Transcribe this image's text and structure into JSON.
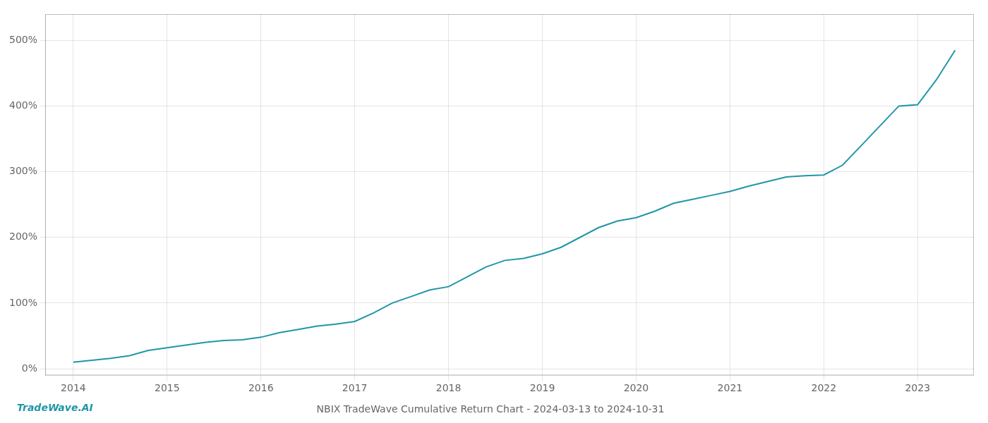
{
  "chart_data": {
    "type": "line",
    "title": "NBIX TradeWave Cumulative Return Chart - 2024-03-13 to 2024-10-31",
    "annotations": [
      "TradeWave.AI"
    ],
    "color": "#2196a8",
    "x": [
      2014.0,
      2014.2,
      2014.4,
      2014.6,
      2014.8,
      2015.0,
      2015.2,
      2015.4,
      2015.6,
      2015.8,
      2016.0,
      2016.2,
      2016.4,
      2016.6,
      2016.8,
      2017.0,
      2017.2,
      2017.4,
      2017.6,
      2017.8,
      2018.0,
      2018.2,
      2018.4,
      2018.6,
      2018.8,
      2019.0,
      2019.2,
      2019.4,
      2019.6,
      2019.8,
      2020.0,
      2020.2,
      2020.4,
      2020.6,
      2020.8,
      2021.0,
      2021.2,
      2021.4,
      2021.6,
      2021.8,
      2022.0,
      2022.2,
      2022.4,
      2022.6,
      2022.8,
      2023.0,
      2023.2,
      2023.4
    ],
    "values": [
      10,
      13,
      16,
      20,
      28,
      32,
      36,
      40,
      43,
      44,
      48,
      55,
      60,
      65,
      68,
      72,
      85,
      100,
      110,
      120,
      125,
      140,
      155,
      165,
      168,
      175,
      185,
      200,
      215,
      225,
      230,
      240,
      252,
      258,
      264,
      270,
      278,
      285,
      292,
      294,
      295,
      310,
      340,
      370,
      400,
      402,
      440,
      485
    ],
    "xlim": [
      2013.7,
      2023.6
    ],
    "xticks": [
      2014,
      2015,
      2016,
      2017,
      2018,
      2019,
      2020,
      2021,
      2022,
      2023
    ],
    "ylim": [
      -10,
      540
    ],
    "yticks": [
      {
        "value": 0,
        "label": "0%"
      },
      {
        "value": 100,
        "label": "100%"
      },
      {
        "value": 200,
        "label": "200%"
      },
      {
        "value": 300,
        "label": "300%"
      },
      {
        "value": 400,
        "label": "400%"
      },
      {
        "value": 500,
        "label": "500%"
      }
    ],
    "grid": true
  }
}
